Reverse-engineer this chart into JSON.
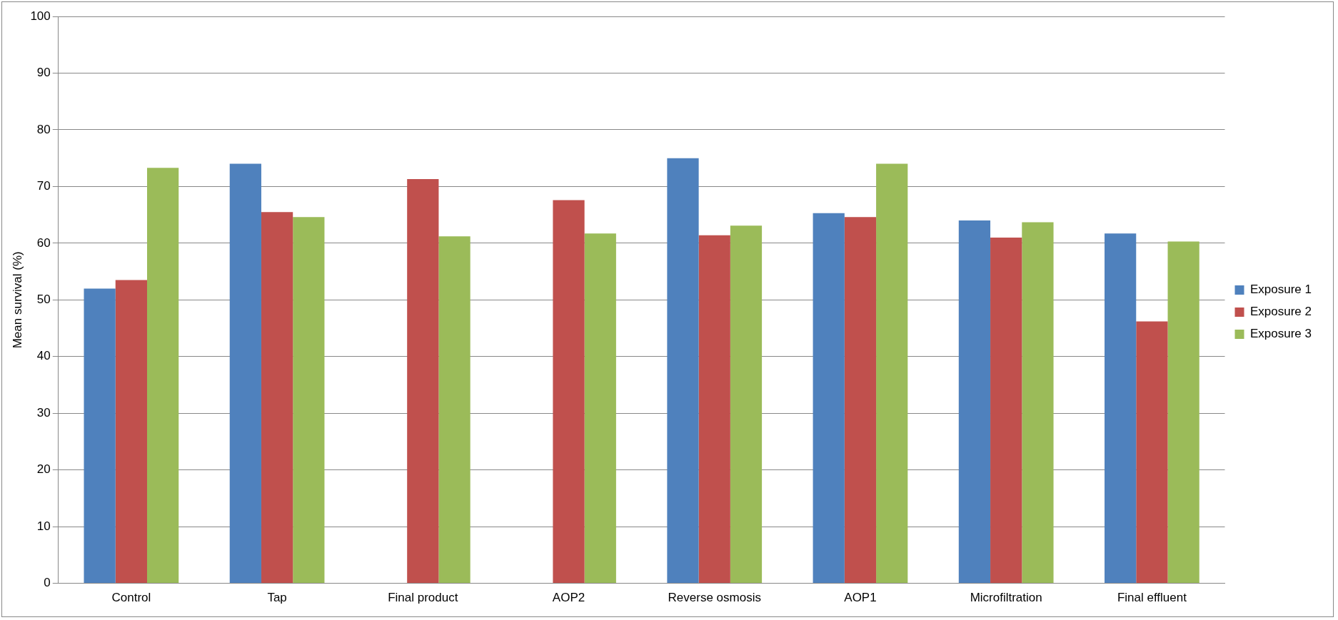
{
  "chart_data": {
    "type": "bar",
    "ylabel": "Mean survival (%)",
    "categories": [
      "Control",
      "Tap",
      "Final product",
      "AOP2",
      "Reverse osmosis",
      "AOP1",
      "Microfiltration",
      "Final effluent"
    ],
    "series": [
      {
        "name": "Exposure 1",
        "color": "#4f81bd",
        "values": [
          52,
          74,
          null,
          null,
          75,
          65.3,
          64,
          61.7
        ]
      },
      {
        "name": "Exposure 2",
        "color": "#c0504d",
        "values": [
          53.5,
          65.5,
          71.3,
          67.6,
          61.4,
          64.6,
          61,
          46.2
        ]
      },
      {
        "name": "Exposure 3",
        "color": "#9bbb59",
        "values": [
          73.3,
          64.6,
          61.2,
          61.7,
          63.1,
          74,
          63.7,
          60.3
        ]
      }
    ],
    "ylim": [
      0,
      100
    ],
    "yticks": [
      0,
      10,
      20,
      30,
      40,
      50,
      60,
      70,
      80,
      90,
      100
    ],
    "grid": "y",
    "legend": "right"
  }
}
